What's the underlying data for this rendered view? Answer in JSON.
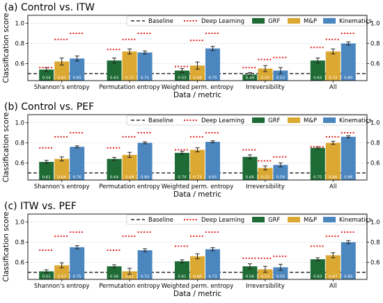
{
  "colors": {
    "GRF": "#1e6b35",
    "M&P": "#dba832",
    "Kinematics": "#4b86bf",
    "baseline": "#000000",
    "deep_learning": "#e02020",
    "grid": "#d9d9d9",
    "error": "#222222"
  },
  "legend": {
    "baseline": "Baseline",
    "deep_learning": "Deep Learning",
    "series": [
      "GRF",
      "M&P",
      "Kinematics"
    ]
  },
  "ylabel": "Classification score",
  "chart_data": [
    {
      "type": "bar",
      "title": "(a) Control vs. ITW",
      "categories": [
        "Shannon's entropy",
        "Permutation entropy",
        "Weighted perm. entropy",
        "Irreversibility",
        "All"
      ],
      "xlabel": "Data / metric",
      "ylabel": "Classification score",
      "ylim": [
        0.43,
        1.08
      ],
      "yticks": [
        "0.6",
        "0.8",
        "1.0"
      ],
      "grid": true,
      "legend_position": "top-right",
      "baseline": 0.5,
      "series": [
        {
          "name": "GRF",
          "values": [
            0.54,
            0.63,
            0.53,
            0.49,
            0.63
          ],
          "errors": [
            0.02,
            0.025,
            0.02,
            0.02,
            0.025
          ],
          "labels": [
            "0.54",
            "0.63",
            "0.53",
            "0.49",
            "0.63"
          ]
        },
        {
          "name": "M&P",
          "values": [
            0.62,
            0.72,
            0.58,
            0.55,
            0.72
          ],
          "errors": [
            0.035,
            0.025,
            0.035,
            0.03,
            0.025
          ],
          "labels": [
            "0.62",
            "0.72",
            "0.58",
            "0.55",
            "0.72"
          ]
        },
        {
          "name": "Kinematics",
          "values": [
            0.65,
            0.71,
            0.75,
            0.53,
            0.8
          ],
          "errors": [
            0.025,
            0.015,
            0.02,
            0.03,
            0.015
          ],
          "labels": [
            "0.65",
            "0.71",
            "0.75",
            "0.53",
            "0.80"
          ]
        }
      ],
      "deep_learning": {
        "GRF": [
          0.56,
          0.74,
          0.57,
          0.56,
          0.76
        ],
        "M&P": [
          0.84,
          0.84,
          0.83,
          0.64,
          0.84
        ],
        "Kinematics": [
          0.9,
          0.9,
          0.9,
          0.66,
          0.9
        ]
      }
    },
    {
      "type": "bar",
      "title": "(b) Control vs. PEF",
      "categories": [
        "Shannon's entropy",
        "Permutation entropy",
        "Weighted perm. entropy",
        "Irreversibility",
        "All"
      ],
      "xlabel": "Data / metric",
      "ylabel": "Classification score",
      "ylim": [
        0.43,
        1.08
      ],
      "yticks": [
        "0.6",
        "0.8",
        "1.0"
      ],
      "grid": true,
      "legend_position": "top-right",
      "baseline": 0.5,
      "series": [
        {
          "name": "GRF",
          "values": [
            0.61,
            0.64,
            0.7,
            0.66,
            0.75
          ],
          "errors": [
            0.015,
            0.015,
            0.015,
            0.02,
            0.01
          ],
          "labels": [
            "0.61",
            "0.64",
            "0.70",
            "0.66",
            "0.75"
          ]
        },
        {
          "name": "M&P",
          "values": [
            0.64,
            0.68,
            0.73,
            0.55,
            0.8
          ],
          "errors": [
            0.02,
            0.025,
            0.02,
            0.02,
            0.015
          ],
          "labels": [
            "0.64",
            "0.68",
            "0.73",
            "0.55",
            "0.80"
          ]
        },
        {
          "name": "Kinematics",
          "values": [
            0.76,
            0.8,
            0.81,
            0.58,
            0.86
          ],
          "errors": [
            0.01,
            0.01,
            0.01,
            0.02,
            0.01
          ],
          "labels": [
            "0.76",
            "0.80",
            "0.81",
            "0.58",
            "0.86"
          ]
        }
      ],
      "deep_learning": {
        "GRF": [
          0.75,
          0.75,
          0.73,
          0.73,
          0.76
        ],
        "M&P": [
          0.86,
          0.86,
          0.86,
          0.62,
          0.86
        ],
        "Kinematics": [
          0.9,
          0.9,
          0.9,
          0.66,
          0.9
        ]
      }
    },
    {
      "type": "bar",
      "title": "(c) ITW vs. PEF",
      "categories": [
        "Shannon's entropy",
        "Permutation entropy",
        "Weighted perm. entropy",
        "Irreversibility",
        "All"
      ],
      "xlabel": "Data / metric",
      "ylabel": "Classification score",
      "ylim": [
        0.43,
        1.08
      ],
      "yticks": [
        "0.6",
        "0.8",
        "1.0"
      ],
      "grid": true,
      "legend_position": "top-right",
      "baseline": 0.5,
      "series": [
        {
          "name": "GRF",
          "values": [
            0.51,
            0.56,
            0.61,
            0.56,
            0.63
          ],
          "errors": [
            0.015,
            0.015,
            0.015,
            0.025,
            0.015
          ],
          "labels": [
            "0.51",
            "0.56",
            "0.61",
            "0.56",
            "0.63"
          ]
        },
        {
          "name": "M&P",
          "values": [
            0.57,
            0.51,
            0.66,
            0.53,
            0.67
          ],
          "errors": [
            0.025,
            0.03,
            0.025,
            0.03,
            0.025
          ],
          "labels": [
            "0.57",
            "0.51",
            "0.66",
            "0.53",
            "0.67"
          ]
        },
        {
          "name": "Kinematics",
          "values": [
            0.75,
            0.72,
            0.73,
            0.55,
            0.8
          ],
          "errors": [
            0.015,
            0.015,
            0.015,
            0.03,
            0.015
          ],
          "labels": [
            "0.75",
            "0.72",
            "0.73",
            "0.55",
            "0.80"
          ]
        }
      ],
      "deep_learning": {
        "GRF": [
          0.72,
          0.72,
          0.76,
          0.64,
          0.76
        ],
        "M&P": [
          0.86,
          0.86,
          0.86,
          0.64,
          0.86
        ],
        "Kinematics": [
          0.9,
          0.9,
          0.9,
          0.66,
          0.9
        ]
      }
    }
  ]
}
